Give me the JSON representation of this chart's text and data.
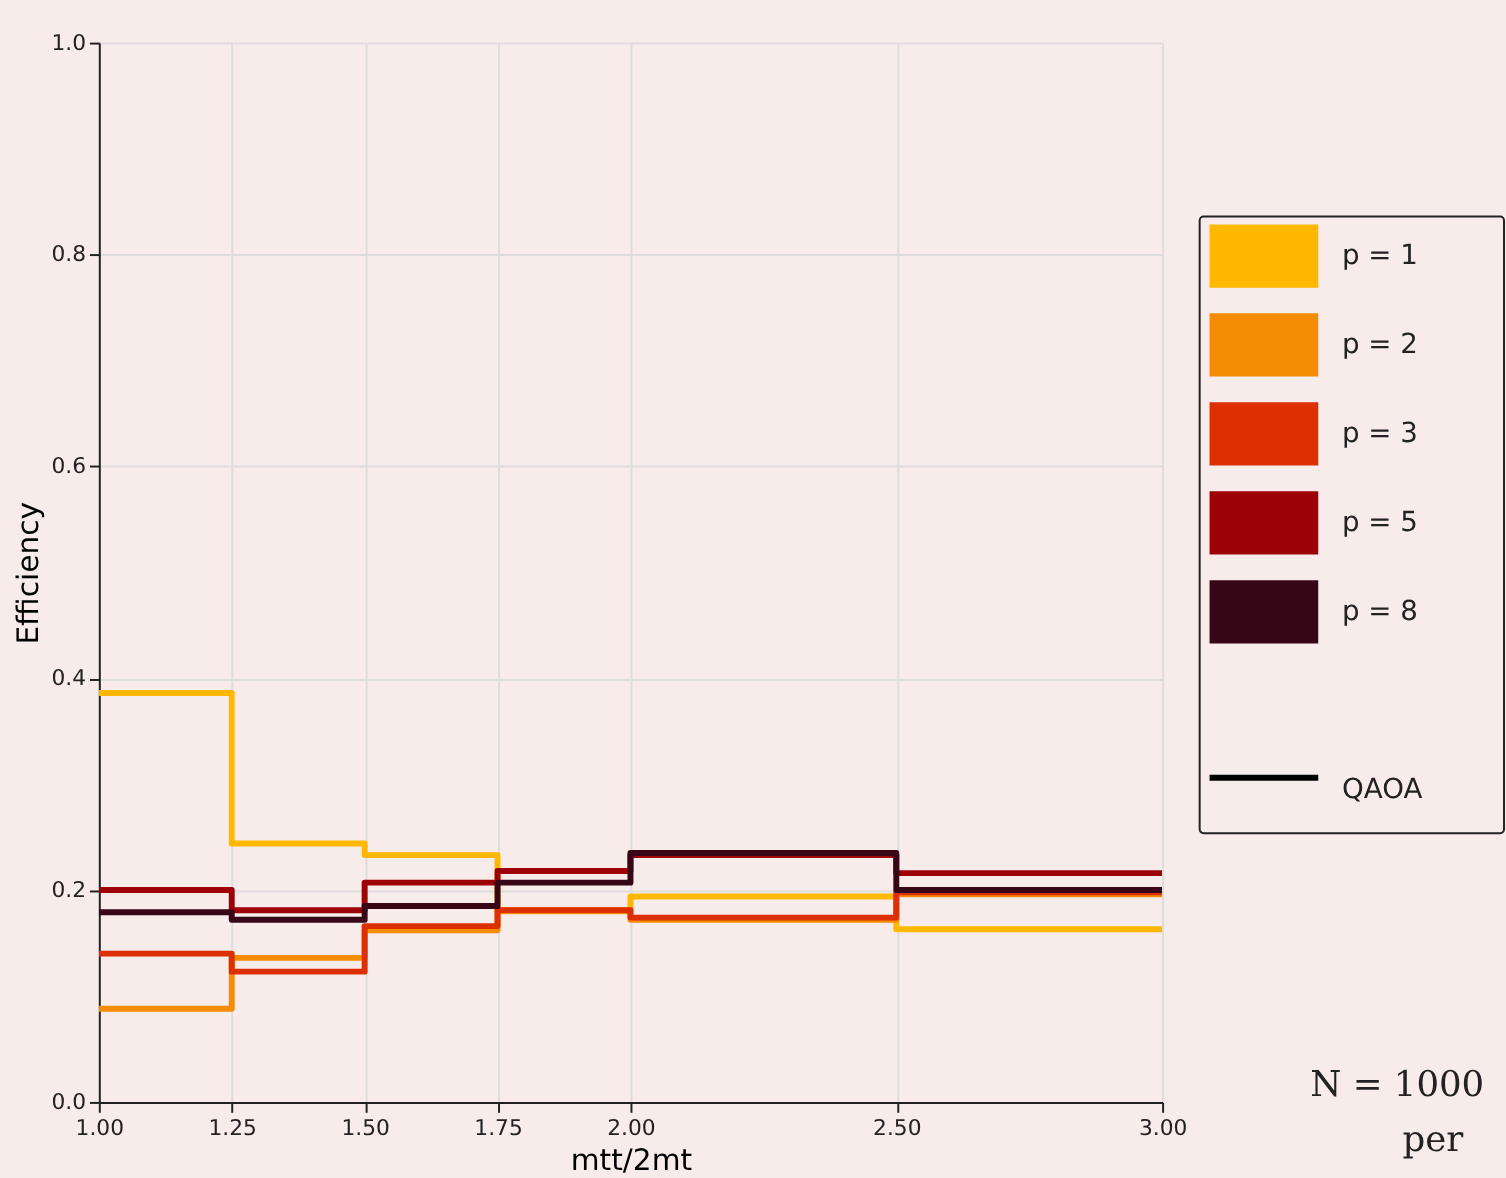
{
  "chart_data": {
    "type": "histogram",
    "xlabel": "mtt/2mt",
    "ylabel": "Efficiency",
    "bins": [
      1.0,
      1.25,
      1.5,
      1.75,
      2.0,
      2.5,
      3.0
    ],
    "series": [
      {
        "name": "p = 1",
        "color": "#ffb700",
        "values": [
          0.386,
          0.244,
          0.233,
          0.18,
          0.194,
          0.163
        ]
      },
      {
        "name": "p = 2",
        "color": "#f48c06",
        "values": [
          0.088,
          0.136,
          0.162,
          0.181,
          0.172,
          0.196
        ]
      },
      {
        "name": "p = 3",
        "color": "#dc2f02",
        "values": [
          0.14,
          0.123,
          0.166,
          0.181,
          0.174,
          0.198
        ]
      },
      {
        "name": "p = 5",
        "color": "#9d0208",
        "values": [
          0.2,
          0.181,
          0.207,
          0.218,
          0.233,
          0.216
        ]
      },
      {
        "name": "p = 8",
        "color": "#370617",
        "values": [
          0.179,
          0.172,
          0.185,
          0.207,
          0.235,
          0.2
        ]
      },
      {
        "name": "QAOA",
        "color": "#000000",
        "type": "line",
        "values": [
          null,
          null,
          null,
          null,
          null,
          null
        ]
      }
    ],
    "xlim": [
      1.0,
      3.0
    ],
    "xticks": [
      {
        "value": 1.0,
        "label": "1.00"
      },
      1.25,
      {
        "value": 1.5,
        "label": "1.50"
      },
      1.75,
      {
        "value": 2.0,
        "label": "2.00"
      },
      {
        "value": 2.5,
        "label": "2.50"
      },
      {
        "value": 3.0,
        "label": "3.00"
      }
    ],
    "ylim": [
      0,
      1
    ],
    "yticks": [
      {
        "value": 0,
        "label": "0.0"
      },
      0.2,
      0.4,
      0.6,
      0.8,
      {
        "value": 1,
        "label": "1.0"
      }
    ],
    "grid": true,
    "legend": "right",
    "annotations": [
      "N = 1000",
      "per"
    ]
  }
}
